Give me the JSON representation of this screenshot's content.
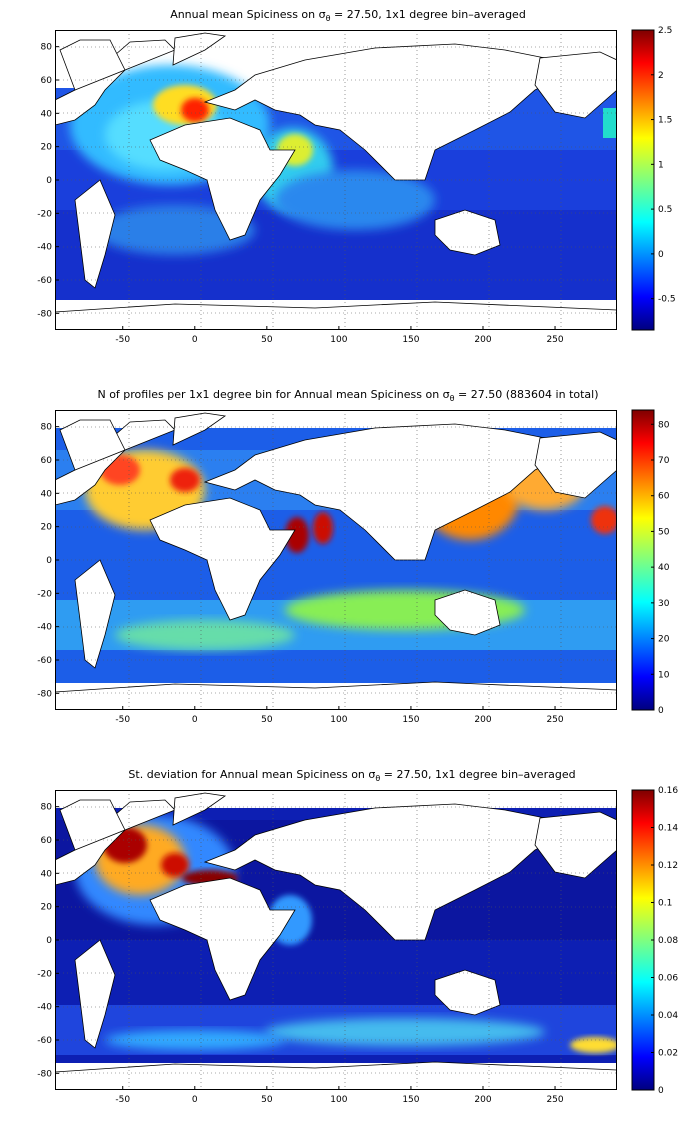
{
  "chart_data": [
    {
      "type": "heatmap",
      "title_prefix": "Annual mean Spiciness on ",
      "title_sigma": "σ",
      "title_sub": "θ",
      "title_suffix": " = 27.50, 1x1 degree bin–averaged",
      "x_ticks": [
        "-50",
        "0",
        "50",
        "100",
        "150",
        "200",
        "250"
      ],
      "x_tick_values": [
        -50,
        0,
        50,
        100,
        150,
        200,
        250
      ],
      "y_ticks": [
        "80",
        "60",
        "40",
        "20",
        "0",
        "-20",
        "-40",
        "-60",
        "-80"
      ],
      "y_tick_values": [
        80,
        60,
        40,
        20,
        0,
        -20,
        -40,
        -60,
        -80
      ],
      "xlim": [
        -97,
        293
      ],
      "ylim": [
        -90,
        90
      ],
      "colorbar_ticks": [
        "2.5",
        "2",
        "1.5",
        "1",
        "0.5",
        "0",
        "-0.5"
      ],
      "colorbar_values": [
        2.5,
        2,
        1.5,
        1,
        0.5,
        0,
        -0.5
      ],
      "colorbar_range": [
        -0.85,
        2.5
      ],
      "grid": true,
      "colormap": "jet"
    },
    {
      "type": "heatmap",
      "title_prefix": "N of profiles per 1x1 degree bin for Annual mean Spiciness on ",
      "title_sigma": "σ",
      "title_sub": "θ",
      "title_suffix": " = 27.50 (883604 in total)",
      "x_ticks": [
        "-50",
        "0",
        "50",
        "100",
        "150",
        "200",
        "250"
      ],
      "x_tick_values": [
        -50,
        0,
        50,
        100,
        150,
        200,
        250
      ],
      "y_ticks": [
        "80",
        "60",
        "40",
        "20",
        "0",
        "-20",
        "-40",
        "-60",
        "-80"
      ],
      "y_tick_values": [
        80,
        60,
        40,
        20,
        0,
        -20,
        -40,
        -60,
        -80
      ],
      "xlim": [
        -97,
        293
      ],
      "ylim": [
        -90,
        90
      ],
      "colorbar_ticks": [
        "80",
        "70",
        "60",
        "50",
        "40",
        "30",
        "20",
        "10",
        "0"
      ],
      "colorbar_values": [
        80,
        70,
        60,
        50,
        40,
        30,
        20,
        10,
        0
      ],
      "colorbar_range": [
        0,
        84
      ],
      "grid": true,
      "colormap": "jet"
    },
    {
      "type": "heatmap",
      "title_prefix": "St. deviation for Annual mean Spiciness on ",
      "title_sigma": "σ",
      "title_sub": "θ",
      "title_suffix": " = 27.50, 1x1 degree bin–averaged",
      "x_ticks": [
        "-50",
        "0",
        "50",
        "100",
        "150",
        "200",
        "250"
      ],
      "x_tick_values": [
        -50,
        0,
        50,
        100,
        150,
        200,
        250
      ],
      "y_ticks": [
        "80",
        "60",
        "40",
        "20",
        "0",
        "-20",
        "-40",
        "-60",
        "-80"
      ],
      "y_tick_values": [
        80,
        60,
        40,
        20,
        0,
        -20,
        -40,
        -60,
        -80
      ],
      "xlim": [
        -97,
        293
      ],
      "ylim": [
        -90,
        90
      ],
      "colorbar_ticks": [
        "0.16",
        "0.14",
        "0.12",
        "0.1",
        "0.08",
        "0.06",
        "0.04",
        "0.02",
        "0"
      ],
      "colorbar_values": [
        0.16,
        0.14,
        0.12,
        0.1,
        0.08,
        0.06,
        0.04,
        0.02,
        0
      ],
      "colorbar_range": [
        0,
        0.16
      ],
      "grid": true,
      "colormap": "jet"
    }
  ]
}
